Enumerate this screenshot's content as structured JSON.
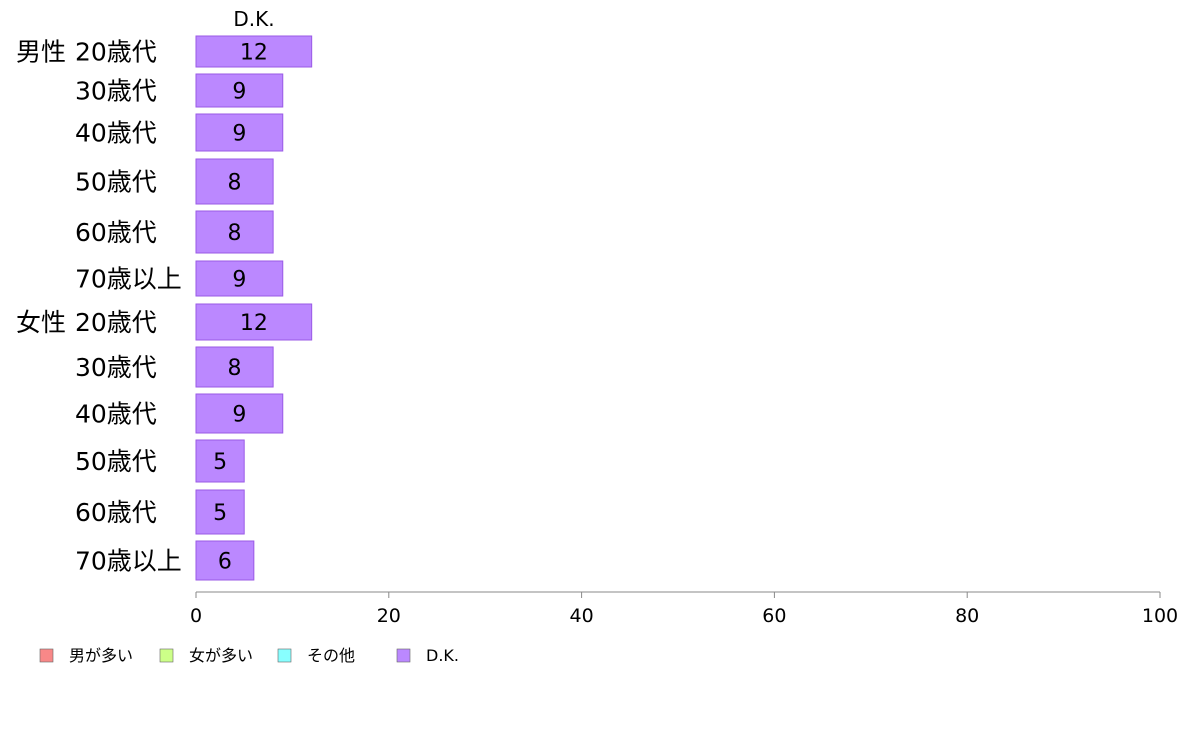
{
  "chart_data": {
    "type": "bar",
    "orientation": "horizontal",
    "series_header": "D.K.",
    "groups": [
      {
        "name": "男性",
        "categories": [
          "20歳代",
          "30歳代",
          "40歳代",
          "50歳代",
          "60歳代",
          "70歳以上"
        ]
      },
      {
        "name": "女性",
        "categories": [
          "20歳代",
          "30歳代",
          "40歳代",
          "50歳代",
          "60歳代",
          "70歳以上"
        ]
      }
    ],
    "series": [
      {
        "name": "D.K.",
        "values": [
          12,
          9,
          9,
          8,
          8,
          9,
          12,
          8,
          9,
          5,
          5,
          6
        ]
      }
    ],
    "xlim": [
      0,
      100
    ],
    "xticks": [
      0,
      20,
      40,
      60,
      80,
      100
    ],
    "grid": false,
    "legend_position": "bottom-left",
    "legend": [
      {
        "label": "男が多い",
        "color": "#f88888"
      },
      {
        "label": "女が多い",
        "color": "#ccff88"
      },
      {
        "label": "その他",
        "color": "#88ffff"
      },
      {
        "label": "D.K.",
        "color": "#bb88ff"
      }
    ],
    "bar_color": "#bb88ff",
    "bar_stroke": "#9a5ae6"
  }
}
